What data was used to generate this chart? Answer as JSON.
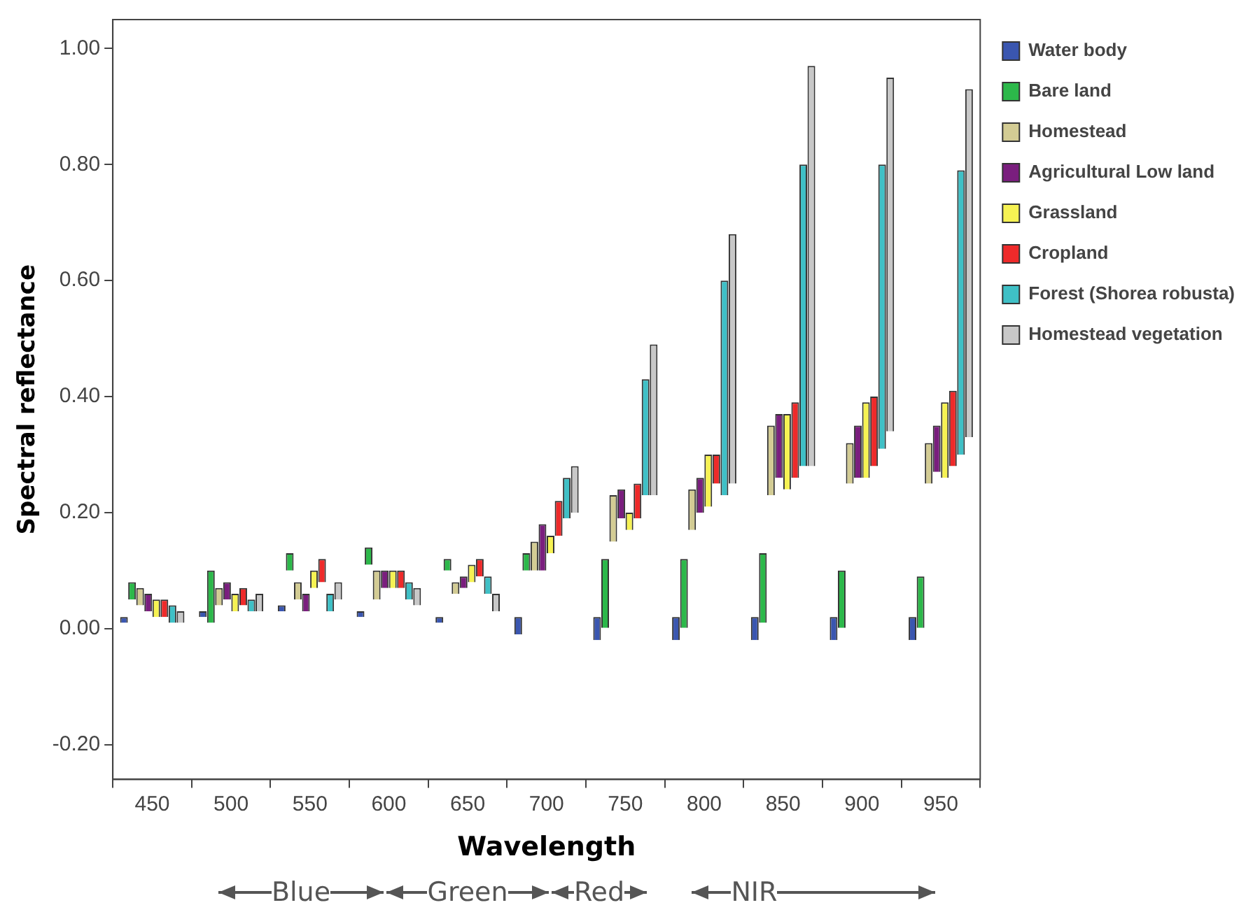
{
  "chart_data": {
    "type": "bar",
    "xlabel": "Wavelength",
    "ylabel": "Spectral reflectance",
    "categories": [
      "450",
      "500",
      "550",
      "600",
      "650",
      "700",
      "750",
      "800",
      "850",
      "900",
      "950"
    ],
    "ylim": [
      -0.26,
      1.05
    ],
    "yticks": [
      {
        "value": -0.2,
        "label": "-0.20"
      },
      {
        "value": 0,
        "label": "0.00"
      },
      {
        "value": 0.2,
        "label": "0.20"
      },
      {
        "value": 0.4,
        "label": "0.40"
      },
      {
        "value": 0.6,
        "label": "0.60"
      },
      {
        "value": 0.8,
        "label": "0.80"
      },
      {
        "value": 1,
        "label": "1.00"
      }
    ],
    "grid": false,
    "legend": "right",
    "series": [
      {
        "name": "Water body",
        "color": "#3a56b0",
        "base": [
          0.01,
          0.02,
          0.03,
          0.02,
          0.01,
          -0.01,
          -0.02,
          -0.02,
          -0.02,
          -0.02,
          -0.02
        ],
        "values": [
          0.01,
          0.01,
          0.01,
          0.01,
          0.01,
          0.03,
          0.04,
          0.04,
          0.04,
          0.04,
          0.04
        ]
      },
      {
        "name": "Bare land",
        "color": "#2cb84a",
        "base": [
          0.05,
          0.01,
          0.1,
          0.11,
          0.1,
          0.1,
          0.0,
          0.0,
          0.01,
          0.0,
          0.0
        ],
        "values": [
          0.03,
          0.09,
          0.03,
          0.03,
          0.02,
          0.03,
          0.12,
          0.12,
          0.12,
          0.1,
          0.09
        ]
      },
      {
        "name": "Homestead",
        "color": "#d3cc94",
        "base": [
          0.04,
          0.04,
          0.05,
          0.05,
          0.06,
          0.1,
          0.15,
          0.17,
          0.23,
          0.25,
          0.25
        ],
        "values": [
          0.03,
          0.03,
          0.03,
          0.05,
          0.02,
          0.05,
          0.08,
          0.07,
          0.12,
          0.07,
          0.07
        ]
      },
      {
        "name": "Agricultural Low land",
        "color": "#7a1e7e",
        "base": [
          0.03,
          0.05,
          0.03,
          0.07,
          0.07,
          0.1,
          0.19,
          0.2,
          0.26,
          0.26,
          0.27
        ],
        "values": [
          0.03,
          0.03,
          0.03,
          0.03,
          0.02,
          0.08,
          0.05,
          0.06,
          0.11,
          0.09,
          0.08
        ]
      },
      {
        "name": "Grassland",
        "color": "#f6f253",
        "base": [
          0.02,
          0.03,
          0.07,
          0.07,
          0.08,
          0.13,
          0.17,
          0.21,
          0.24,
          0.26,
          0.26
        ],
        "values": [
          0.03,
          0.03,
          0.03,
          0.03,
          0.03,
          0.03,
          0.03,
          0.09,
          0.13,
          0.13,
          0.13
        ]
      },
      {
        "name": "Cropland",
        "color": "#ee2a2a",
        "base": [
          0.02,
          0.04,
          0.08,
          0.07,
          0.09,
          0.16,
          0.19,
          0.25,
          0.26,
          0.28,
          0.28
        ],
        "values": [
          0.03,
          0.03,
          0.04,
          0.03,
          0.03,
          0.06,
          0.06,
          0.05,
          0.13,
          0.12,
          0.13
        ]
      },
      {
        "name": "Forest (Shorea robusta)",
        "color": "#3fc0c6",
        "base": [
          0.01,
          0.03,
          0.03,
          0.05,
          0.06,
          0.19,
          0.23,
          0.23,
          0.28,
          0.31,
          0.3
        ],
        "values": [
          0.03,
          0.02,
          0.03,
          0.03,
          0.03,
          0.07,
          0.2,
          0.37,
          0.52,
          0.49,
          0.49
        ]
      },
      {
        "name": "Homestead vegetation",
        "color": "#c8c8c8",
        "base": [
          0.01,
          0.03,
          0.05,
          0.04,
          0.03,
          0.2,
          0.23,
          0.25,
          0.28,
          0.34,
          0.33
        ],
        "values": [
          0.02,
          0.03,
          0.03,
          0.03,
          0.03,
          0.08,
          0.26,
          0.43,
          0.69,
          0.61,
          0.6
        ]
      }
    ],
    "annotations": [
      "Blue",
      "Green",
      "Red",
      "NIR"
    ]
  }
}
